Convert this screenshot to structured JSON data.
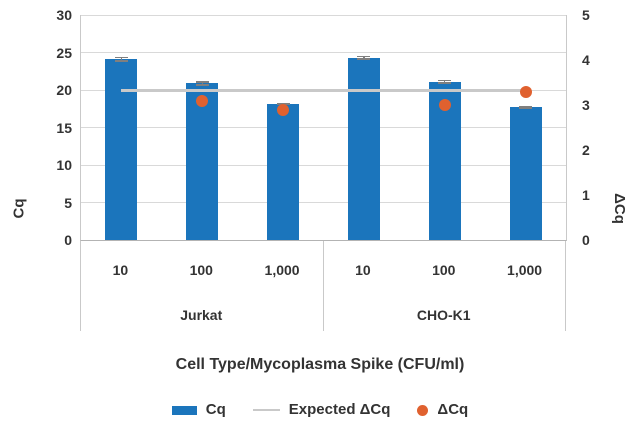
{
  "chart_data": {
    "type": "bar",
    "subtype": "combo-bar-line-scatter",
    "title": "",
    "x_axis_title": "Cell Type/Mycoplasma Spike (CFU/ml)",
    "left_axis": {
      "title": "Cq",
      "min": 0,
      "max": 30,
      "ticks": [
        0,
        5,
        10,
        15,
        20,
        25,
        30
      ]
    },
    "right_axis": {
      "title": "ΔCq",
      "min": 0,
      "max": 5,
      "ticks": [
        0,
        1,
        2,
        3,
        4,
        5
      ]
    },
    "groups": [
      {
        "label": "Jurkat",
        "categories": [
          "10",
          "100",
          "1,000"
        ]
      },
      {
        "label": "CHO-K1",
        "categories": [
          "10",
          "100",
          "1,000"
        ]
      }
    ],
    "series": [
      {
        "name": "Cq",
        "type": "bar",
        "axis": "left",
        "color": "#1B75BC",
        "values": [
          24.1,
          20.9,
          18.1,
          24.3,
          21.1,
          17.7
        ],
        "errors": [
          0.35,
          0.3,
          0.15,
          0.3,
          0.3,
          0.2
        ]
      },
      {
        "name": "Expected ΔCq",
        "type": "line",
        "axis": "right",
        "color": "#C9C9C9",
        "value": 3.33
      },
      {
        "name": "ΔCq",
        "type": "scatter",
        "axis": "right",
        "color": "#E0612F",
        "values": [
          null,
          3.1,
          2.9,
          null,
          3.0,
          3.3
        ]
      }
    ],
    "legend": {
      "position": "bottom",
      "items": [
        {
          "label": "Cq",
          "marker": "square",
          "color": "#1B75BC"
        },
        {
          "label": "Expected ΔCq",
          "marker": "line",
          "color": "#C9C9C9"
        },
        {
          "label": "ΔCq",
          "marker": "circle",
          "color": "#E0612F"
        }
      ]
    },
    "grid": {
      "horizontal": true,
      "color": "#D9D9D9"
    }
  }
}
